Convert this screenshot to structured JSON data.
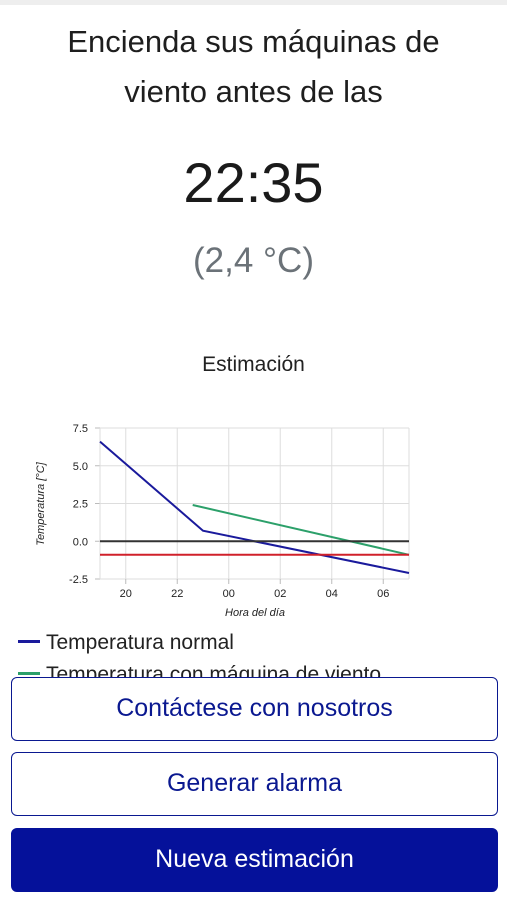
{
  "header": {
    "line1": "Encienda sus máquinas de",
    "line2": "viento antes de las",
    "time": "22:35",
    "temperature": "(2,4 °C)"
  },
  "chart_title": "Estimación",
  "chart_data": {
    "type": "line",
    "xlabel": "Hora del día",
    "ylabel": "Temperatura [°C]",
    "xlim": [
      19,
      31
    ],
    "ylim": [
      -2.5,
      7.5
    ],
    "x_ticks": [
      "20",
      "22",
      "00",
      "02",
      "04",
      "06"
    ],
    "y_ticks": [
      "7.5",
      "5.0",
      "2.5",
      "0.0",
      "-2.5"
    ],
    "grid": true,
    "series": [
      {
        "name": "Temperatura normal",
        "color": "#1a1a9c",
        "x": [
          19,
          23,
          31
        ],
        "y": [
          6.6,
          0.7,
          -2.1
        ]
      },
      {
        "name": "Temperatura con máquina de viento",
        "color": "#2ca06a",
        "x": [
          22.6,
          31
        ],
        "y": [
          2.4,
          -0.9
        ]
      },
      {
        "name": "",
        "color": "#333333",
        "x": [
          19,
          31
        ],
        "y": [
          0.0,
          0.0
        ]
      },
      {
        "name": "",
        "color": "#d0202a",
        "x": [
          19,
          31
        ],
        "y": [
          -0.9,
          -0.9
        ]
      }
    ]
  },
  "legend": {
    "item1": "Temperatura normal",
    "item2": "Temperatura con máquina de viento"
  },
  "buttons": {
    "contact": "Contáctese con nosotros",
    "alarm": "Generar alarma",
    "new_estimate": "Nueva estimación"
  }
}
